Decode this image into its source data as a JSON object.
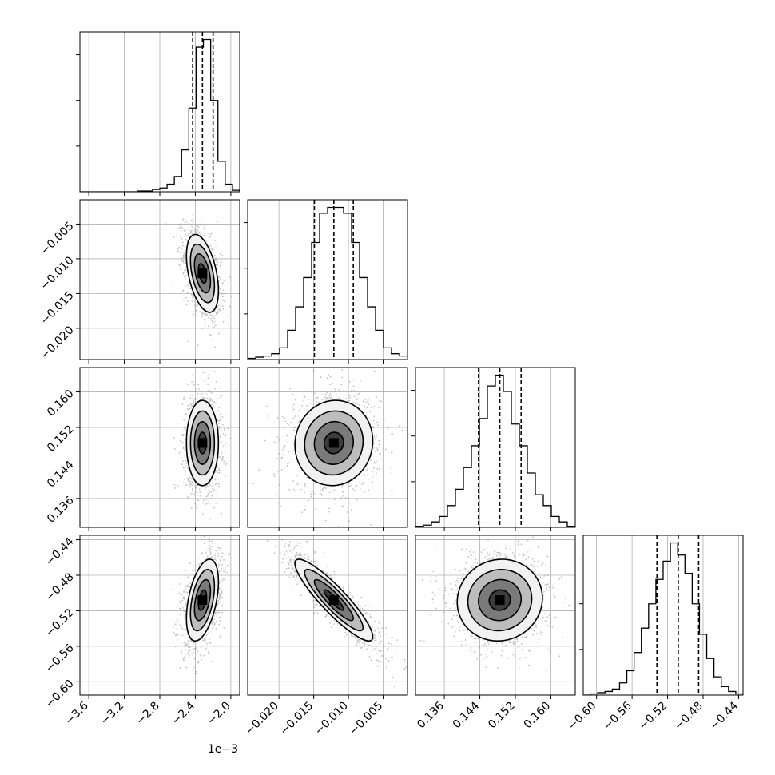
{
  "chart_data": {
    "type": "corner",
    "title": "",
    "grid": true,
    "parameters": [
      {
        "label": "",
        "range": [
          -3.7,
          -1.9
        ],
        "ticks": [
          -3.6,
          -3.2,
          -2.8,
          -2.4,
          -2.0
        ],
        "tick_labels": [
          "−3.6",
          "−3.2",
          "−2.8",
          "−2.4",
          "−2.0"
        ],
        "offset_label": "1e−3",
        "quantiles": [
          -2.43,
          -2.32,
          -2.2
        ],
        "hist": [
          0,
          0,
          0,
          0,
          0,
          0,
          0,
          0,
          1,
          1,
          3,
          5,
          10,
          20,
          55,
          110,
          190,
          200,
          120,
          40,
          10,
          2
        ]
      },
      {
        "label": "",
        "range": [
          -0.0245,
          -0.0015
        ],
        "ticks": [
          -0.02,
          -0.015,
          -0.01,
          -0.005
        ],
        "tick_labels": [
          "−0.020",
          "−0.015",
          "−0.010",
          "−0.005"
        ],
        "offset_label": "",
        "quantiles": [
          -0.0149,
          -0.0121,
          -0.0093
        ],
        "hist": [
          1,
          2,
          3,
          5,
          10,
          25,
          45,
          70,
          100,
          125,
          130,
          130,
          125,
          100,
          70,
          45,
          25,
          10,
          5,
          3
        ]
      },
      {
        "label": "",
        "range": [
          0.1295,
          0.1655
        ],
        "ticks": [
          0.136,
          0.144,
          0.152,
          0.16
        ],
        "tick_labels": [
          "0.136",
          "0.144",
          "0.152",
          "0.160"
        ],
        "offset_label": "",
        "quantiles": [
          0.1437,
          0.1485,
          0.1533
        ],
        "hist": [
          1,
          2,
          5,
          10,
          20,
          35,
          55,
          75,
          100,
          130,
          140,
          125,
          95,
          75,
          50,
          30,
          20,
          10,
          5,
          1
        ]
      },
      {
        "label": "",
        "range": [
          -0.615,
          -0.435
        ],
        "ticks": [
          -0.6,
          -0.56,
          -0.52,
          -0.48,
          -0.44
        ],
        "tick_labels": [
          "−0.60",
          "−0.56",
          "−0.52",
          "−0.48",
          "−0.44"
        ],
        "offset_label": "",
        "quantiles": [
          -0.532,
          -0.508,
          -0.485
        ],
        "hist": [
          0,
          1,
          2,
          3,
          5,
          10,
          20,
          35,
          55,
          75,
          95,
          110,
          125,
          115,
          100,
          75,
          50,
          30,
          15,
          7,
          3,
          1
        ]
      }
    ],
    "pairs": [
      {
        "row": 1,
        "col": 0,
        "mean": [
          -2.32,
          -0.0121
        ],
        "std": [
          0.09,
          0.0028
        ],
        "corr": -0.45
      },
      {
        "row": 2,
        "col": 0,
        "mean": [
          -2.32,
          0.1485
        ],
        "std": [
          0.09,
          0.0048
        ],
        "corr": 0.0
      },
      {
        "row": 2,
        "col": 1,
        "mean": [
          -0.0121,
          0.1485
        ],
        "std": [
          0.0028,
          0.0048
        ],
        "corr": 0.05
      },
      {
        "row": 3,
        "col": 0,
        "mean": [
          -2.32,
          -0.508
        ],
        "std": [
          0.09,
          0.023
        ],
        "corr": 0.45
      },
      {
        "row": 3,
        "col": 1,
        "mean": [
          -0.0121,
          -0.508
        ],
        "std": [
          0.0028,
          0.023
        ],
        "corr": -0.9
      },
      {
        "row": 3,
        "col": 2,
        "mean": [
          0.1485,
          -0.508
        ],
        "std": [
          0.0048,
          0.023
        ],
        "corr": 0.05
      }
    ],
    "contour_levels_sigma": [
      0.5,
      1.0,
      1.5,
      2.0
    ]
  }
}
